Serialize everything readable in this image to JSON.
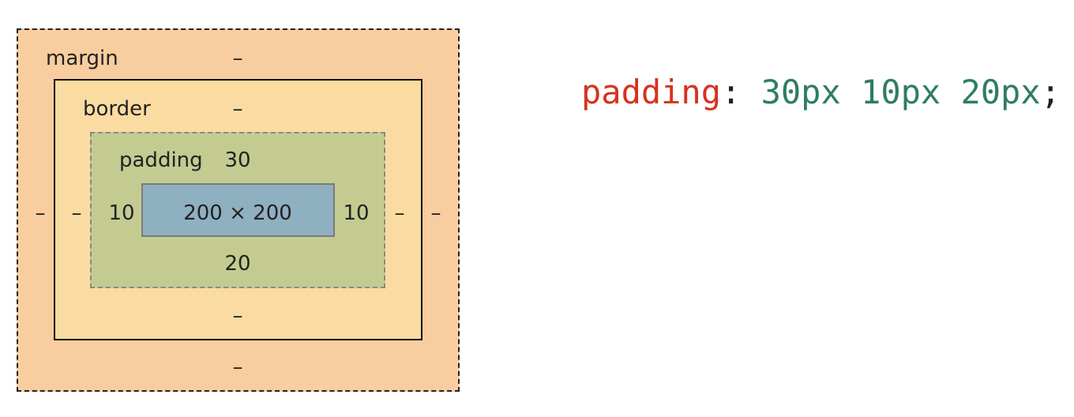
{
  "diagram": {
    "margin": {
      "label": "margin",
      "top": "–",
      "right": "–",
      "bottom": "–",
      "left": "–",
      "fill_color": "#f8cd9f"
    },
    "border": {
      "label": "border",
      "top": "–",
      "right": "–",
      "bottom": "–",
      "left": "–",
      "fill_color": "#fadca2"
    },
    "padding": {
      "label": "padding",
      "top": "30",
      "right": "10",
      "bottom": "20",
      "left": "10",
      "fill_color": "#c3cb91"
    },
    "content": {
      "label": "200 × 200",
      "fill_color": "#8fb0c0"
    }
  },
  "code": {
    "property": "padding",
    "colon": ":",
    "values": " 30px 10px 20px",
    "semicolon": ";",
    "property_color": "#d6321e",
    "value_color": "#2e7d62"
  }
}
